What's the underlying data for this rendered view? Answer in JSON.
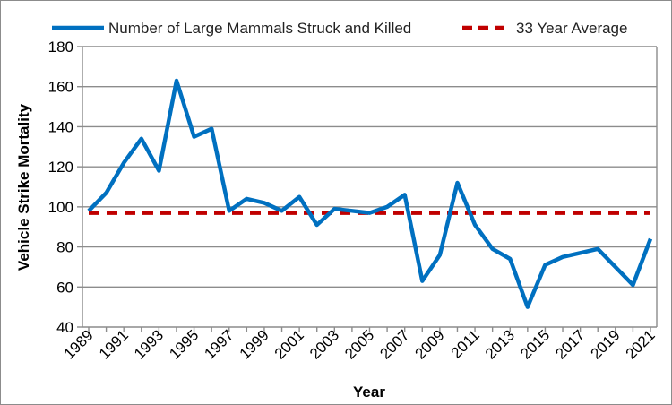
{
  "chart_data": {
    "type": "line",
    "xlabel": "Year",
    "ylabel": "Vehicle Strike Mortality",
    "ylim": [
      40,
      180
    ],
    "yticks": [
      40,
      60,
      80,
      100,
      120,
      140,
      160,
      180
    ],
    "xlim": [
      1989,
      2021
    ],
    "xtick_labels": [
      "1989",
      "1991",
      "1993",
      "1995",
      "1997",
      "1999",
      "2001",
      "2003",
      "2005",
      "2007",
      "2009",
      "2011",
      "2013",
      "2015",
      "2017",
      "2019",
      "2021"
    ],
    "grid": "horizontal",
    "legend_position": "top",
    "x": [
      1989,
      1990,
      1991,
      1992,
      1993,
      1994,
      1995,
      1996,
      1997,
      1998,
      1999,
      2000,
      2001,
      2002,
      2003,
      2004,
      2005,
      2006,
      2007,
      2008,
      2009,
      2010,
      2011,
      2012,
      2013,
      2014,
      2015,
      2016,
      2017,
      2018,
      2019,
      2020,
      2021
    ],
    "series": [
      {
        "name": "Number of Large Mammals Struck and Killed",
        "color": "#0070C0",
        "style": "solid",
        "values": [
          98,
          107,
          122,
          134,
          118,
          163,
          135,
          139,
          98,
          104,
          102,
          98,
          105,
          91,
          99,
          98,
          97,
          100,
          106,
          63,
          76,
          112,
          91,
          79,
          74,
          50,
          71,
          75,
          77,
          79,
          70,
          61,
          84
        ]
      },
      {
        "name": "33 Year Average",
        "color": "#C00000",
        "style": "dashed",
        "values": [
          97,
          97,
          97,
          97,
          97,
          97,
          97,
          97,
          97,
          97,
          97,
          97,
          97,
          97,
          97,
          97,
          97,
          97,
          97,
          97,
          97,
          97,
          97,
          97,
          97,
          97,
          97,
          97,
          97,
          97,
          97,
          97,
          97
        ]
      }
    ]
  }
}
